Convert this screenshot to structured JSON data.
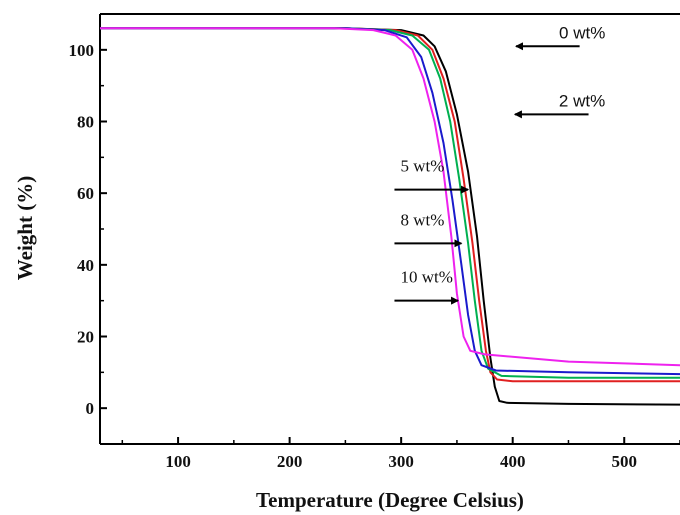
{
  "chart_data": {
    "type": "line",
    "xlabel": "Temperature (Degree Celsius)",
    "ylabel": "Weight (%)",
    "xlim": [
      30,
      550
    ],
    "ylim": [
      -10,
      110
    ],
    "xticks": [
      100,
      200,
      300,
      400,
      500
    ],
    "yticks": [
      0,
      20,
      40,
      60,
      80,
      100
    ],
    "grid": false,
    "series": [
      {
        "name": "0 wt%",
        "color": "#000000",
        "points": [
          [
            30,
            106
          ],
          [
            250,
            106
          ],
          [
            300,
            105.5
          ],
          [
            320,
            104
          ],
          [
            330,
            101
          ],
          [
            340,
            94
          ],
          [
            350,
            82
          ],
          [
            360,
            66
          ],
          [
            368,
            48
          ],
          [
            374,
            30
          ],
          [
            380,
            14
          ],
          [
            384,
            6
          ],
          [
            388,
            2
          ],
          [
            395,
            1.5
          ],
          [
            450,
            1.2
          ],
          [
            550,
            1
          ]
        ]
      },
      {
        "name": "2 wt%",
        "color": "#e02020",
        "points": [
          [
            30,
            106
          ],
          [
            250,
            106
          ],
          [
            295,
            105.5
          ],
          [
            315,
            104
          ],
          [
            328,
            100
          ],
          [
            338,
            92
          ],
          [
            348,
            80
          ],
          [
            356,
            64
          ],
          [
            364,
            46
          ],
          [
            370,
            30
          ],
          [
            376,
            16
          ],
          [
            380,
            10
          ],
          [
            386,
            8
          ],
          [
            400,
            7.5
          ],
          [
            470,
            7.5
          ],
          [
            550,
            7.5
          ]
        ]
      },
      {
        "name": "5 wt%",
        "color": "#00b050",
        "points": [
          [
            30,
            106
          ],
          [
            250,
            106
          ],
          [
            290,
            105.5
          ],
          [
            310,
            104
          ],
          [
            325,
            100
          ],
          [
            335,
            92
          ],
          [
            344,
            80
          ],
          [
            352,
            64
          ],
          [
            360,
            46
          ],
          [
            366,
            30
          ],
          [
            372,
            16
          ],
          [
            378,
            11
          ],
          [
            390,
            9
          ],
          [
            450,
            8.5
          ],
          [
            550,
            8.5
          ]
        ]
      },
      {
        "name": "8 wt%",
        "color": "#1a1acc",
        "points": [
          [
            30,
            106
          ],
          [
            250,
            106
          ],
          [
            285,
            105.5
          ],
          [
            305,
            103.5
          ],
          [
            318,
            98
          ],
          [
            328,
            88
          ],
          [
            338,
            74
          ],
          [
            346,
            58
          ],
          [
            354,
            40
          ],
          [
            360,
            26
          ],
          [
            366,
            16
          ],
          [
            372,
            12
          ],
          [
            385,
            10.5
          ],
          [
            450,
            10
          ],
          [
            550,
            9.5
          ]
        ]
      },
      {
        "name": "10 wt%",
        "color": "#ee22ee",
        "points": [
          [
            30,
            106
          ],
          [
            240,
            106
          ],
          [
            275,
            105.5
          ],
          [
            295,
            104
          ],
          [
            310,
            100
          ],
          [
            320,
            92
          ],
          [
            330,
            80
          ],
          [
            338,
            66
          ],
          [
            345,
            48
          ],
          [
            350,
            32
          ],
          [
            356,
            20
          ],
          [
            362,
            16
          ],
          [
            375,
            15
          ],
          [
            450,
            13
          ],
          [
            550,
            12
          ]
        ]
      }
    ],
    "annotations": [
      {
        "text": "0 wt%",
        "arrow_from": [
          460,
          101
        ],
        "arrow_to": [
          403,
          101
        ]
      },
      {
        "text": "2 wt%",
        "arrow_from": [
          468,
          82
        ],
        "arrow_to": [
          402,
          82
        ]
      },
      {
        "text": "5 wt%",
        "arrow_from": [
          294,
          61
        ],
        "arrow_to": [
          360,
          61
        ]
      },
      {
        "text": "8 wt%",
        "arrow_from": [
          294,
          46
        ],
        "arrow_to": [
          354,
          46
        ]
      },
      {
        "text": "10 wt%",
        "arrow_from": [
          294,
          30
        ],
        "arrow_to": [
          351,
          30
        ]
      }
    ]
  }
}
